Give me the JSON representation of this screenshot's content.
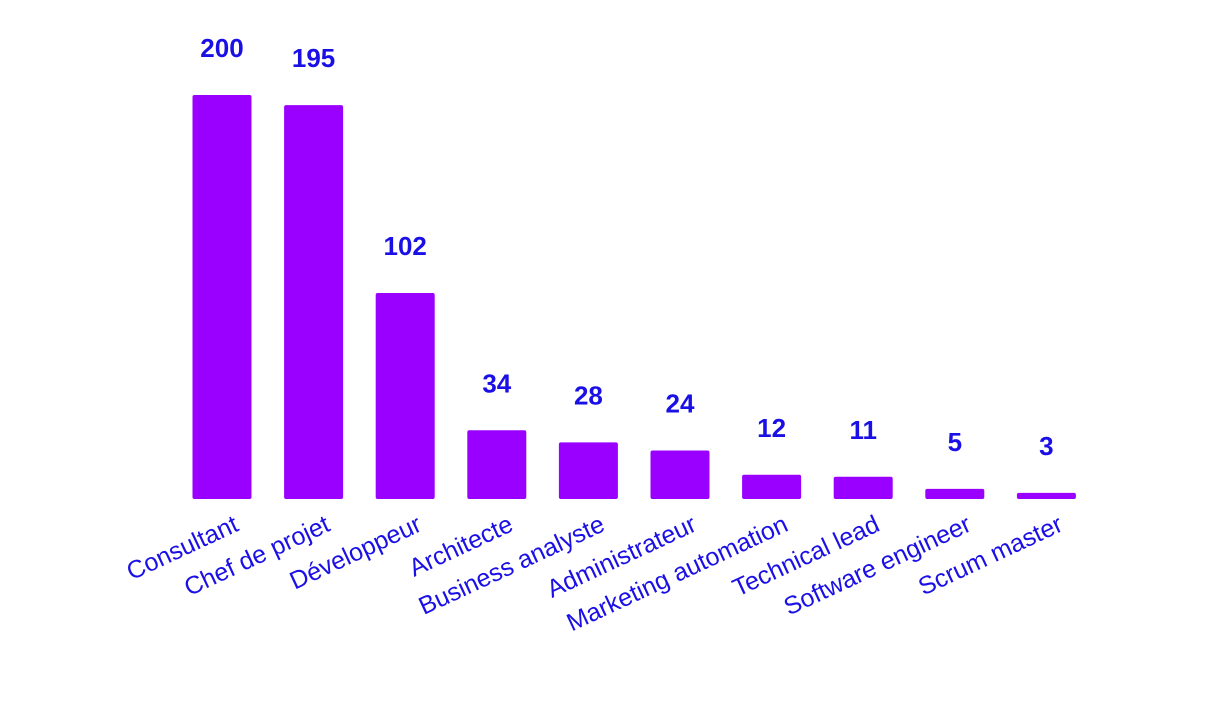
{
  "colors": {
    "bar": "#9900ff",
    "text": "#1a10e6",
    "background": "#ffffff"
  },
  "chart_data": {
    "type": "bar",
    "title": "",
    "xlabel": "",
    "ylabel": "",
    "ylim": [
      0,
      200
    ],
    "grid": false,
    "legend": "none",
    "categories": [
      "Consultant",
      "Chef de projet",
      "Développeur",
      "Architecte",
      "Business analyste",
      "Administrateur",
      "Marketing automation",
      "Technical lead",
      "Software engineer",
      "Scrum master"
    ],
    "values": [
      200,
      195,
      102,
      34,
      28,
      24,
      12,
      11,
      5,
      3
    ],
    "data_labels": [
      "200",
      "195",
      "102",
      "34",
      "28",
      "24",
      "12",
      "11",
      "5",
      "3"
    ]
  }
}
